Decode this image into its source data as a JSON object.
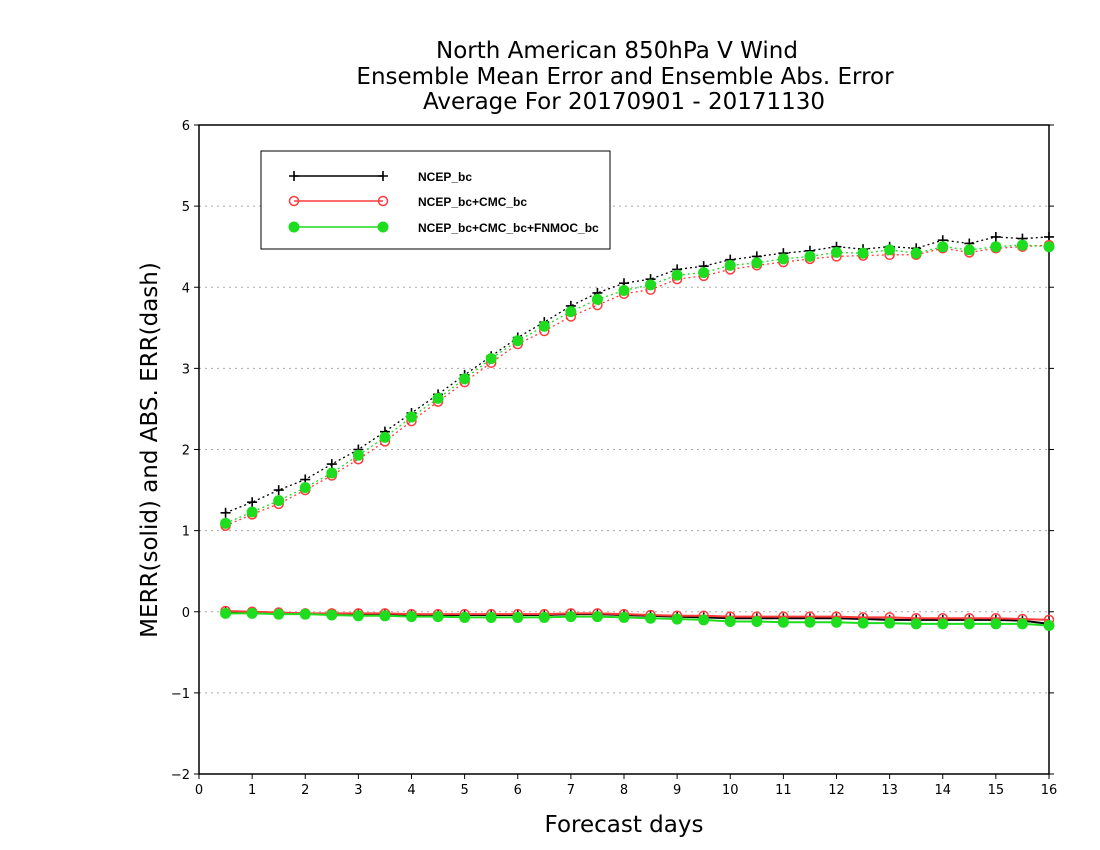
{
  "chart_data": {
    "type": "line",
    "title": "North American 850hPa V Wind",
    "subtitle": "Ensemble Mean Error and Ensemble Abs. Error",
    "subtitle2": "Average For 20170901 - 20171130",
    "xlabel": "Forecast days",
    "ylabel": "MERR(solid) and ABS. ERR(dash)",
    "xlim": [
      0,
      16
    ],
    "ylim": [
      -2,
      6
    ],
    "xticks": [
      "0",
      "1",
      "2",
      "3",
      "4",
      "5",
      "6",
      "7",
      "8",
      "9",
      "10",
      "11",
      "12",
      "13",
      "14",
      "15",
      "16"
    ],
    "yticks": [
      "-2",
      "-1",
      "0",
      "1",
      "2",
      "3",
      "4",
      "5",
      "6"
    ],
    "grid": true,
    "legend_position": "top-left",
    "x": [
      0.5,
      1,
      1.5,
      2,
      2.5,
      3,
      3.5,
      4,
      4.5,
      5,
      5.5,
      6,
      6.5,
      7,
      7.5,
      8,
      8.5,
      9,
      9.5,
      10,
      10.5,
      11,
      11.5,
      12,
      12.5,
      13,
      13.5,
      14,
      14.5,
      15,
      15.5,
      16
    ],
    "series": [
      {
        "name": "NCEP_bc",
        "color": "#000000",
        "marker": "plus",
        "merr": [
          0.0,
          -0.01,
          -0.02,
          -0.02,
          -0.03,
          -0.03,
          -0.03,
          -0.04,
          -0.04,
          -0.04,
          -0.04,
          -0.04,
          -0.04,
          -0.03,
          -0.03,
          -0.04,
          -0.05,
          -0.06,
          -0.07,
          -0.08,
          -0.08,
          -0.08,
          -0.08,
          -0.08,
          -0.09,
          -0.1,
          -0.1,
          -0.1,
          -0.1,
          -0.1,
          -0.11,
          -0.15
        ],
        "abs_err": [
          1.22,
          1.35,
          1.5,
          1.63,
          1.82,
          2.0,
          2.22,
          2.45,
          2.68,
          2.92,
          3.15,
          3.38,
          3.57,
          3.77,
          3.93,
          4.05,
          4.1,
          4.22,
          4.26,
          4.34,
          4.38,
          4.42,
          4.45,
          4.5,
          4.47,
          4.5,
          4.48,
          4.58,
          4.54,
          4.62,
          4.6,
          4.62
        ]
      },
      {
        "name": "NCEP_bc+CMC_bc",
        "color": "#ff3b3b",
        "marker": "open-circle",
        "merr": [
          0.01,
          0.0,
          -0.01,
          -0.02,
          -0.02,
          -0.02,
          -0.02,
          -0.03,
          -0.03,
          -0.03,
          -0.03,
          -0.03,
          -0.03,
          -0.02,
          -0.02,
          -0.03,
          -0.04,
          -0.05,
          -0.05,
          -0.06,
          -0.06,
          -0.06,
          -0.06,
          -0.06,
          -0.07,
          -0.07,
          -0.08,
          -0.08,
          -0.08,
          -0.08,
          -0.09,
          -0.1
        ],
        "abs_err": [
          1.06,
          1.2,
          1.33,
          1.5,
          1.68,
          1.88,
          2.1,
          2.35,
          2.59,
          2.83,
          3.07,
          3.3,
          3.46,
          3.64,
          3.78,
          3.92,
          3.97,
          4.1,
          4.14,
          4.22,
          4.27,
          4.31,
          4.35,
          4.38,
          4.39,
          4.4,
          4.4,
          4.48,
          4.43,
          4.48,
          4.5,
          4.52
        ]
      },
      {
        "name": "NCEP_bc+CMC_bc+FNMOC_bc",
        "color": "#1edc1e",
        "marker": "filled-circle",
        "merr": [
          -0.02,
          -0.02,
          -0.03,
          -0.03,
          -0.04,
          -0.05,
          -0.05,
          -0.06,
          -0.06,
          -0.07,
          -0.07,
          -0.07,
          -0.07,
          -0.06,
          -0.06,
          -0.07,
          -0.08,
          -0.09,
          -0.1,
          -0.12,
          -0.12,
          -0.13,
          -0.13,
          -0.13,
          -0.14,
          -0.14,
          -0.15,
          -0.15,
          -0.15,
          -0.15,
          -0.15,
          -0.17
        ],
        "abs_err": [
          1.09,
          1.23,
          1.37,
          1.53,
          1.71,
          1.93,
          2.15,
          2.4,
          2.63,
          2.87,
          3.12,
          3.34,
          3.52,
          3.7,
          3.85,
          3.96,
          4.03,
          4.15,
          4.18,
          4.27,
          4.3,
          4.35,
          4.38,
          4.43,
          4.42,
          4.46,
          4.42,
          4.5,
          4.46,
          4.5,
          4.52,
          4.5
        ]
      }
    ]
  }
}
